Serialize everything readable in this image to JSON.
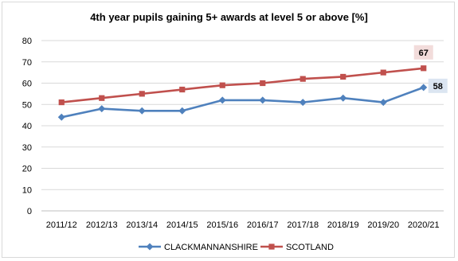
{
  "chart_data": {
    "type": "line",
    "title": "4th year pupils gaining 5+ awards at level 5 or above  [%]",
    "xlabel": "",
    "ylabel": "",
    "categories": [
      "2011/12",
      "2012/13",
      "2013/14",
      "2014/15",
      "2015/16",
      "2016/17",
      "2017/18",
      "2018/19",
      "2019/20",
      "2020/21"
    ],
    "ylim": [
      0,
      80
    ],
    "yticks": [
      0,
      10,
      20,
      30,
      40,
      50,
      60,
      70,
      80
    ],
    "grid": true,
    "legend": "bottom",
    "series": [
      {
        "name": "CLACKMANNANSHIRE",
        "color": "#4f81bd",
        "marker": "diamond",
        "values": [
          44,
          48,
          47,
          47,
          52,
          52,
          51,
          53,
          51,
          58
        ],
        "end_label": "58",
        "end_label_bg": "#dbe5f1"
      },
      {
        "name": "SCOTLAND",
        "color": "#c0504d",
        "marker": "square",
        "values": [
          51,
          53,
          55,
          57,
          59,
          60,
          62,
          63,
          65,
          67
        ],
        "end_label": "67",
        "end_label_bg": "#f2dcdb"
      }
    ]
  }
}
